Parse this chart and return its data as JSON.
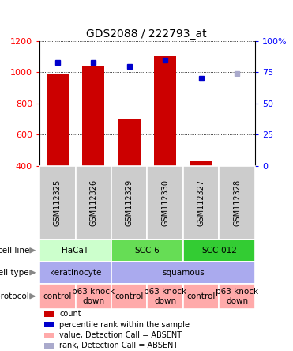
{
  "title": "GDS2088 / 222793_at",
  "samples": [
    "GSM112325",
    "GSM112326",
    "GSM112329",
    "GSM112330",
    "GSM112327",
    "GSM112328"
  ],
  "bar_values": [
    985,
    1040,
    700,
    1105,
    430,
    400
  ],
  "bar_colors": [
    "#cc0000",
    "#cc0000",
    "#cc0000",
    "#cc0000",
    "#cc0000",
    "#ffaaaa"
  ],
  "dot_values": [
    1065,
    1065,
    1035,
    1080,
    960,
    990
  ],
  "dot_colors": [
    "#0000cc",
    "#0000cc",
    "#0000cc",
    "#0000cc",
    "#0000cc",
    "#aaaacc"
  ],
  "dot_absent": [
    false,
    false,
    false,
    false,
    false,
    true
  ],
  "ylim_left": [
    400,
    1200
  ],
  "ylim_right": [
    0,
    100
  ],
  "yticks_left": [
    400,
    600,
    800,
    1000,
    1200
  ],
  "yticks_right": [
    0,
    25,
    50,
    75,
    100
  ],
  "cell_line_groups": [
    {
      "label": "HaCaT",
      "start": 0,
      "end": 2,
      "color": "#ccffcc"
    },
    {
      "label": "SCC-6",
      "start": 2,
      "end": 4,
      "color": "#66dd55"
    },
    {
      "label": "SCC-012",
      "start": 4,
      "end": 6,
      "color": "#33cc33"
    }
  ],
  "cell_type_groups": [
    {
      "label": "keratinocyte",
      "start": 0,
      "end": 2,
      "color": "#aaaaee"
    },
    {
      "label": "squamous",
      "start": 2,
      "end": 6,
      "color": "#aaaaee"
    }
  ],
  "protocol_groups": [
    {
      "label": "control",
      "start": 0,
      "end": 1,
      "color": "#ffaaaa"
    },
    {
      "label": "p63 knock\ndown",
      "start": 1,
      "end": 2,
      "color": "#ffaaaa"
    },
    {
      "label": "control",
      "start": 2,
      "end": 3,
      "color": "#ffaaaa"
    },
    {
      "label": "p63 knock\ndown",
      "start": 3,
      "end": 4,
      "color": "#ffaaaa"
    },
    {
      "label": "control",
      "start": 4,
      "end": 5,
      "color": "#ffaaaa"
    },
    {
      "label": "p63 knock\ndown",
      "start": 5,
      "end": 6,
      "color": "#ffaaaa"
    }
  ],
  "legend_items": [
    {
      "color": "#cc0000",
      "label": "count",
      "marker": "s"
    },
    {
      "color": "#0000cc",
      "label": "percentile rank within the sample",
      "marker": "s"
    },
    {
      "color": "#ffaaaa",
      "label": "value, Detection Call = ABSENT",
      "marker": "s"
    },
    {
      "color": "#aaaacc",
      "label": "rank, Detection Call = ABSENT",
      "marker": "s"
    }
  ]
}
